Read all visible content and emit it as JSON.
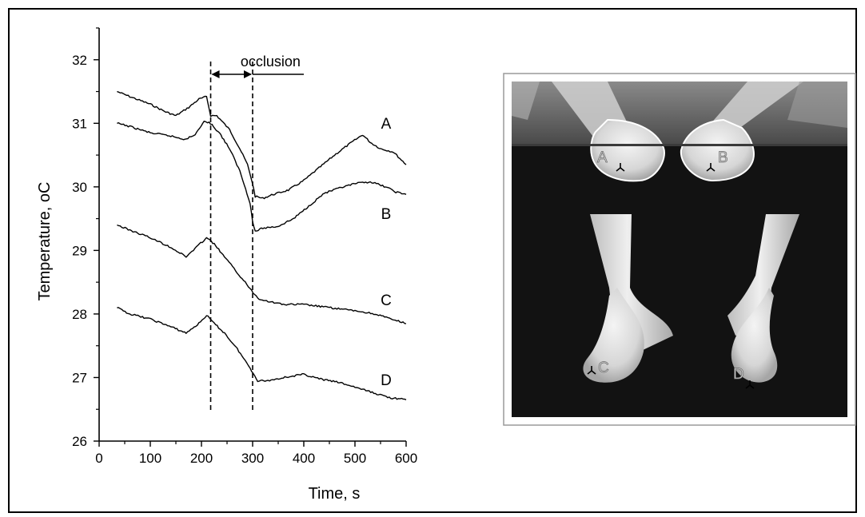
{
  "chart_data": {
    "type": "line",
    "xlabel": "Time, s",
    "ylabel": "Temperature, ",
    "ylabel_unit": "oC",
    "xlim": [
      0,
      600
    ],
    "ylim": [
      26,
      32.5
    ],
    "xticks": [
      "0",
      "100",
      "200",
      "300",
      "400",
      "500",
      "600"
    ],
    "yticks": [
      "26",
      "27",
      "28",
      "29",
      "30",
      "31",
      "32"
    ],
    "series": [
      {
        "name": "A",
        "x": [
          35,
          60,
          100,
          130,
          150,
          175,
          195,
          210,
          218,
          230,
          255,
          275,
          290,
          300,
          305,
          320,
          340,
          370,
          400,
          430,
          460,
          490,
          515,
          530,
          550,
          575,
          600
        ],
        "y": [
          31.5,
          31.42,
          31.3,
          31.18,
          31.12,
          31.25,
          31.38,
          31.42,
          31.12,
          31.12,
          30.9,
          30.6,
          30.35,
          30.05,
          29.85,
          29.82,
          29.88,
          29.95,
          30.1,
          30.3,
          30.5,
          30.68,
          30.82,
          30.7,
          30.6,
          30.55,
          30.35
        ]
      },
      {
        "name": "B",
        "x": [
          35,
          60,
          100,
          140,
          165,
          185,
          205,
          215,
          235,
          255,
          275,
          295,
          300,
          305,
          320,
          350,
          380,
          410,
          440,
          470,
          500,
          530,
          560,
          580,
          600
        ],
        "y": [
          31.0,
          30.95,
          30.85,
          30.8,
          30.75,
          30.8,
          31.02,
          31.02,
          30.85,
          30.6,
          30.25,
          29.75,
          29.45,
          29.3,
          29.35,
          29.38,
          29.5,
          29.7,
          29.9,
          29.98,
          30.05,
          30.08,
          30.0,
          29.92,
          29.88
        ]
      },
      {
        "name": "C",
        "x": [
          35,
          60,
          100,
          140,
          170,
          190,
          210,
          225,
          245,
          270,
          295,
          310,
          330,
          360,
          400,
          450,
          500,
          540,
          570,
          600
        ],
        "y": [
          29.4,
          29.32,
          29.2,
          29.05,
          28.9,
          29.05,
          29.2,
          29.1,
          28.9,
          28.65,
          28.4,
          28.25,
          28.2,
          28.15,
          28.15,
          28.1,
          28.05,
          28.0,
          27.92,
          27.85
        ]
      },
      {
        "name": "D",
        "x": [
          35,
          60,
          100,
          140,
          170,
          195,
          210,
          225,
          245,
          270,
          295,
          310,
          330,
          360,
          400,
          430,
          470,
          500,
          540,
          570,
          600
        ],
        "y": [
          28.1,
          28.0,
          27.92,
          27.8,
          27.7,
          27.85,
          27.98,
          27.85,
          27.7,
          27.45,
          27.15,
          26.95,
          26.95,
          27.0,
          27.05,
          26.98,
          26.92,
          26.85,
          26.75,
          26.68,
          26.65
        ]
      }
    ],
    "vlines": [
      218,
      300
    ],
    "annotation": {
      "text": "occlusion"
    },
    "grid": false
  },
  "thermal_image": {
    "markers": [
      "A",
      "B",
      "C",
      "D"
    ]
  }
}
